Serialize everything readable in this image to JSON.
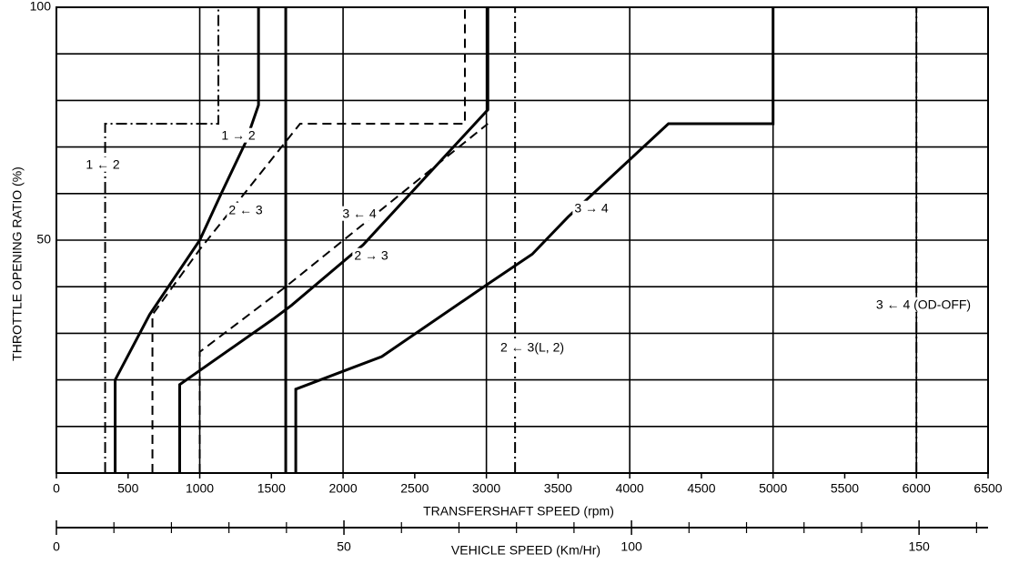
{
  "chart_data": {
    "type": "line",
    "y_label": "THROTTLE OPENING RATIO  (%)",
    "x_label": "TRANSFERSHAFT SPEED (rpm)",
    "x2_label": "VEHICLE SPEED (Km/Hr)",
    "xlim": [
      0,
      6500
    ],
    "xticks": [
      0,
      500,
      1000,
      1500,
      2000,
      2500,
      3000,
      3500,
      4000,
      4500,
      5000,
      5500,
      6000,
      6500
    ],
    "xgrid": [
      1000,
      2000,
      3000,
      4000,
      5000,
      6000
    ],
    "ylim": [
      0,
      100
    ],
    "yticks": [
      50,
      100
    ],
    "ygrid": [
      10,
      20,
      30,
      40,
      50,
      60,
      70,
      80,
      90,
      100
    ],
    "x2lim": [
      0,
      162
    ],
    "x2ticks": [
      0,
      50,
      100,
      150
    ],
    "x2minor": [
      10,
      20,
      30,
      40,
      60,
      70,
      80,
      90,
      110,
      120,
      130,
      140,
      160
    ],
    "grid": true,
    "series": [
      {
        "name": "1 → 2",
        "style": "solid",
        "color": "#000",
        "x": [
          410,
          410,
          650,
          1000,
          1150,
          1320,
          1410,
          1410
        ],
        "values": [
          0,
          20,
          34,
          50,
          60,
          71,
          79,
          100
        ]
      },
      {
        "name": "1 ← 2",
        "style": "dashdot",
        "color": "#000",
        "x": [
          340,
          340,
          1130,
          1130
        ],
        "values": [
          0,
          75,
          75,
          100
        ]
      },
      {
        "name": "2 ← 3",
        "style": "dashed",
        "color": "#000",
        "x": [
          670,
          670,
          1000,
          1700,
          2850,
          2850
        ],
        "values": [
          0,
          34,
          48,
          75,
          75,
          100
        ]
      },
      {
        "name": "3 ← 4",
        "style": "dashed",
        "color": "#000",
        "x": [
          1000,
          1000,
          1600,
          3010
        ],
        "values": [
          0,
          26,
          40,
          75
        ]
      },
      {
        "name": "2 → 3",
        "style": "solid",
        "color": "#000",
        "x": [
          860,
          860,
          1510,
          1640,
          2140,
          3010,
          3010
        ],
        "values": [
          0,
          19,
          33,
          36,
          49,
          78,
          100
        ]
      },
      {
        "name": "3 → 4",
        "style": "solid",
        "color": "#000",
        "x": [
          1670,
          1670,
          2270,
          3030,
          3320,
          3570,
          4270,
          5000,
          5000
        ],
        "values": [
          0,
          18,
          25,
          41,
          47,
          55,
          75,
          75,
          100
        ]
      },
      {
        "name": "2 ← 3(L, 2)",
        "style": "dashdot",
        "color": "#000",
        "x": [
          3200,
          3200
        ],
        "values": [
          0,
          100
        ]
      },
      {
        "name": "3 ← 4 (OD-OFF)",
        "style": "dashdot",
        "color": "#000",
        "x": [
          6000,
          6000
        ],
        "values": [
          0,
          100
        ]
      },
      {
        "style": "solid",
        "color": "#000",
        "x": [
          1600,
          1600
        ],
        "values": [
          0,
          100
        ]
      }
    ]
  }
}
